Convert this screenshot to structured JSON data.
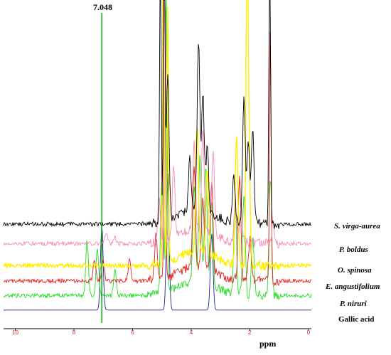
{
  "chart_data": {
    "type": "line",
    "title": "",
    "xlabel": "ppm",
    "ylabel": "",
    "x_reversed": true,
    "xlim": [
      10.4,
      -0.1
    ],
    "xticks": [
      10,
      8,
      6,
      4,
      2,
      0
    ],
    "grid": false,
    "legend_placement": "right, beside each trace",
    "annotations": [
      {
        "text": "7.048",
        "x": 7.048,
        "color": "#1f9e1f"
      }
    ],
    "series": [
      {
        "name": "S. virga-aurea",
        "color": "#000000",
        "baseline": 0.88,
        "peaks": [
          [
            5.05,
            8.0
          ],
          [
            4.92,
            9.0
          ],
          [
            4.8,
            3.5
          ],
          [
            4.05,
            1.2
          ],
          [
            3.75,
            4.0
          ],
          [
            3.6,
            2.7
          ],
          [
            3.45,
            1.5
          ],
          [
            2.55,
            1.1
          ],
          [
            2.2,
            3.0
          ],
          [
            2.05,
            2.0
          ],
          [
            1.9,
            2.2
          ],
          [
            1.32,
            9.0
          ]
        ]
      },
      {
        "name": "P. boldus",
        "color": "#f48cb4",
        "baseline": 0.64,
        "peaks": [
          [
            6.9,
            0.28
          ],
          [
            6.6,
            0.15
          ],
          [
            5.1,
            1.0
          ],
          [
            4.9,
            9.0
          ],
          [
            4.6,
            1.7
          ],
          [
            3.9,
            2.0
          ],
          [
            3.6,
            2.3
          ],
          [
            3.25,
            2.0
          ],
          [
            2.5,
            0.9
          ],
          [
            2.3,
            0.9
          ],
          [
            1.2,
            0.5
          ]
        ]
      },
      {
        "name": "O. spinosa",
        "color": "#ffee00",
        "baseline": 0.37,
        "peaks": [
          [
            4.95,
            9.0
          ],
          [
            4.8,
            6.0
          ],
          [
            3.8,
            3.0
          ],
          [
            3.45,
            2.0
          ],
          [
            2.45,
            3.0
          ],
          [
            2.1,
            9.0
          ],
          [
            2.05,
            4.0
          ]
        ]
      },
      {
        "name": "E. angustifolium",
        "color": "#e31f1f",
        "baseline": 0.18,
        "peaks": [
          [
            7.3,
            0.5
          ],
          [
            7.0,
            0.5
          ],
          [
            6.1,
            0.5
          ],
          [
            5.2,
            1.1
          ],
          [
            4.9,
            9.0
          ],
          [
            3.9,
            2.3
          ],
          [
            3.6,
            1.6
          ],
          [
            3.3,
            2.0
          ],
          [
            2.35,
            2.5
          ],
          [
            2.0,
            1.0
          ],
          [
            1.3,
            6.0
          ]
        ]
      },
      {
        "name": "P. niruri",
        "color": "#22dd22",
        "baseline": 0.0,
        "peaks": [
          [
            7.55,
            1.3
          ],
          [
            7.2,
            1.1
          ],
          [
            6.6,
            0.6
          ],
          [
            5.0,
            2.6
          ],
          [
            4.85,
            9.0
          ],
          [
            3.9,
            2.3
          ],
          [
            3.7,
            3.0
          ],
          [
            3.5,
            2.7
          ],
          [
            3.3,
            1.9
          ],
          [
            2.5,
            2.2
          ],
          [
            2.2,
            2.4
          ],
          [
            1.9,
            1.4
          ],
          [
            1.3,
            2.8
          ]
        ]
      },
      {
        "name": "Gallic acid",
        "color": "#1a2a8a",
        "baseline": -0.18,
        "peaks": [
          [
            7.048,
            2.0
          ],
          [
            4.8,
            3.2
          ],
          [
            3.3,
            1.8
          ]
        ]
      }
    ]
  }
}
